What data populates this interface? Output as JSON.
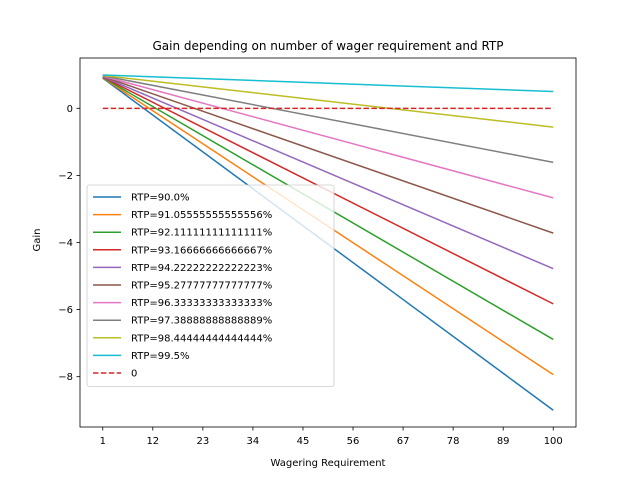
{
  "chart_data": {
    "type": "line",
    "title": "Gain depending on number of wager requirement and RTP",
    "xlabel": "Wagering Requirement",
    "ylabel": "Gain",
    "xlim": [
      -4,
      105
    ],
    "ylim": [
      -9.5,
      1.5
    ],
    "xticks": [
      1,
      12,
      23,
      34,
      45,
      56,
      67,
      78,
      89,
      100
    ],
    "yticks": [
      0,
      -2,
      -4,
      -6,
      -8
    ],
    "legend_position": "lower-left",
    "grid": false,
    "series": [
      {
        "name": "RTP=90.0%",
        "color": "#1f77b4",
        "x": [
          1,
          100
        ],
        "y": [
          0.9,
          -9.0
        ],
        "style": "solid"
      },
      {
        "name": "RTP=91.05555555555556%",
        "color": "#ff7f0e",
        "x": [
          1,
          100
        ],
        "y": [
          0.91,
          -7.94
        ],
        "style": "solid"
      },
      {
        "name": "RTP=92.11111111111111%",
        "color": "#2ca02c",
        "x": [
          1,
          100
        ],
        "y": [
          0.92,
          -6.89
        ],
        "style": "solid"
      },
      {
        "name": "RTP=93.16666666666667%",
        "color": "#d62728",
        "x": [
          1,
          100
        ],
        "y": [
          0.93,
          -5.83
        ],
        "style": "solid"
      },
      {
        "name": "RTP=94.22222222222223%",
        "color": "#9467bd",
        "x": [
          1,
          100
        ],
        "y": [
          0.94,
          -4.78
        ],
        "style": "solid"
      },
      {
        "name": "RTP=95.27777777777777%",
        "color": "#8c564b",
        "x": [
          1,
          100
        ],
        "y": [
          0.95,
          -3.72
        ],
        "style": "solid"
      },
      {
        "name": "RTP=96.33333333333333%",
        "color": "#e377c2",
        "x": [
          1,
          100
        ],
        "y": [
          0.96,
          -2.67
        ],
        "style": "solid"
      },
      {
        "name": "RTP=97.38888888888889%",
        "color": "#7f7f7f",
        "x": [
          1,
          100
        ],
        "y": [
          0.97,
          -1.61
        ],
        "style": "solid"
      },
      {
        "name": "RTP=98.44444444444444%",
        "color": "#bcbd22",
        "x": [
          1,
          100
        ],
        "y": [
          0.98,
          -0.56
        ],
        "style": "solid"
      },
      {
        "name": "RTP=99.5%",
        "color": "#17becf",
        "x": [
          1,
          100
        ],
        "y": [
          0.995,
          0.5
        ],
        "style": "solid"
      },
      {
        "name": "0",
        "color": "#d62728",
        "x": [
          1,
          100
        ],
        "y": [
          0,
          0
        ],
        "style": "dashed"
      }
    ]
  }
}
